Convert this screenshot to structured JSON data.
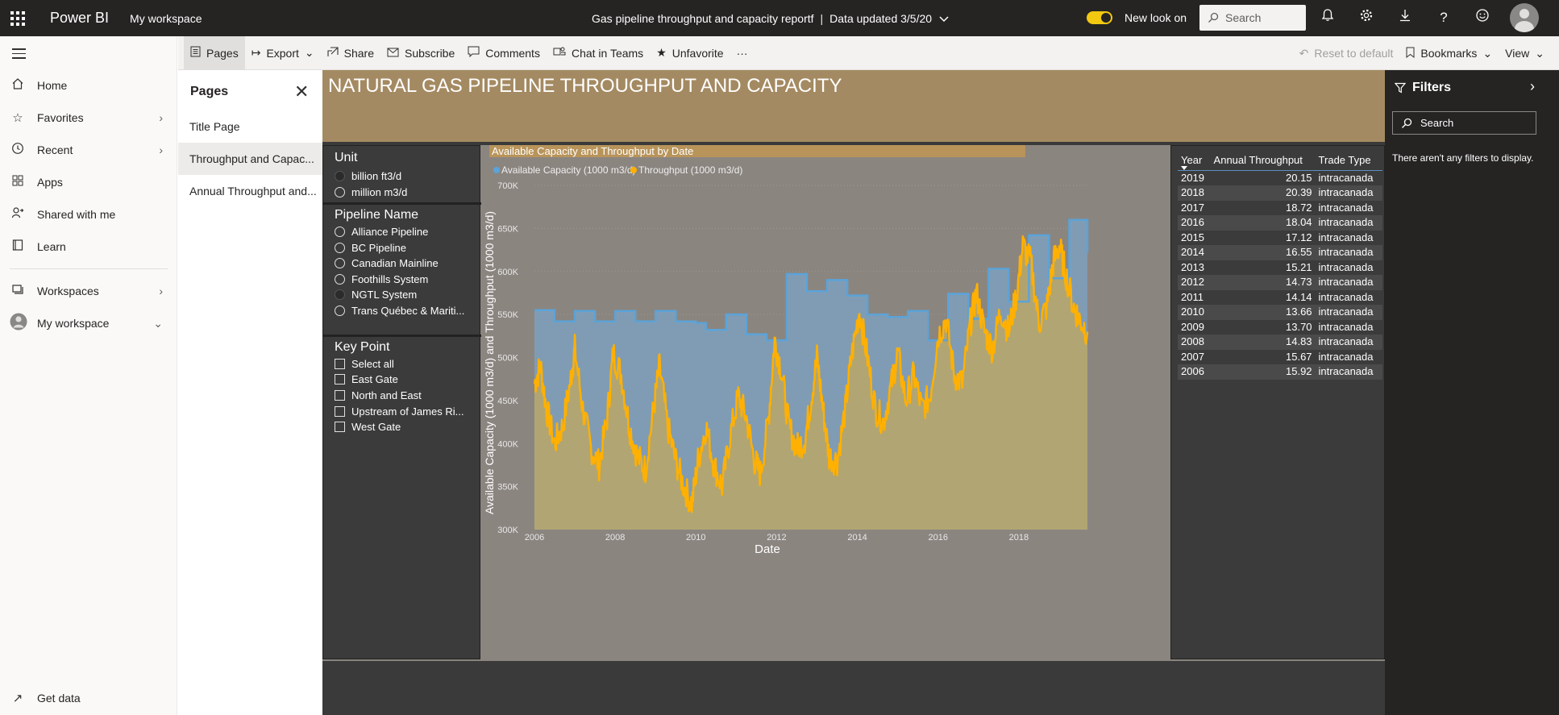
{
  "topbar": {
    "brand": "Power BI",
    "workspace": "My workspace",
    "report_title": "Gas pipeline throughput and capacity reportf",
    "separator": "|",
    "data_updated": "Data updated 3/5/20",
    "new_look": "New look on",
    "search_placeholder": "Search"
  },
  "leftnav": {
    "items": [
      {
        "label": "Home",
        "icon": "home-icon"
      },
      {
        "label": "Favorites",
        "icon": "star-icon"
      },
      {
        "label": "Recent",
        "icon": "clock-icon"
      },
      {
        "label": "Apps",
        "icon": "apps-icon"
      },
      {
        "label": "Shared with me",
        "icon": "shared-icon"
      },
      {
        "label": "Learn",
        "icon": "book-icon"
      },
      {
        "label": "Workspaces",
        "icon": "workspaces-icon"
      },
      {
        "label": "My workspace",
        "icon": "person-icon"
      }
    ],
    "get_data": "Get data"
  },
  "actionbar": {
    "pages": "Pages",
    "export": "Export",
    "share": "Share",
    "subscribe": "Subscribe",
    "comments": "Comments",
    "chat_in_teams": "Chat in Teams",
    "unfavorite": "Unfavorite",
    "more": "···",
    "reset": "Reset to default",
    "bookmarks": "Bookmarks",
    "view": "View"
  },
  "pages_pane": {
    "title": "Pages",
    "pages": [
      "Title Page",
      "Throughput and Capac...",
      "Annual Throughput and..."
    ]
  },
  "report": {
    "title": "NATURAL GAS PIPELINE THROUGHPUT AND CAPACITY",
    "unit_slicer": {
      "title": "Unit",
      "options": [
        "billion ft3/d",
        "million m3/d"
      ],
      "selected": "billion ft3/d"
    },
    "pipeline_slicer": {
      "title": "Pipeline Name",
      "options": [
        "Alliance Pipeline",
        "BC Pipeline",
        "Canadian Mainline",
        "Foothills System",
        "NGTL System",
        "Trans Québec & Mariti..."
      ],
      "selected": "NGTL System"
    },
    "keypoint_slicer": {
      "title": "Key Point",
      "options": [
        "Select all",
        "East Gate",
        "North and East",
        "Upstream of James Ri...",
        "West Gate"
      ]
    },
    "table": {
      "headers": [
        "Year",
        "Annual Throughput",
        "Trade Type"
      ],
      "rows": [
        [
          "2019",
          "20.15",
          "intracanada"
        ],
        [
          "2018",
          "20.39",
          "intracanada"
        ],
        [
          "2017",
          "18.72",
          "intracanada"
        ],
        [
          "2016",
          "18.04",
          "intracanada"
        ],
        [
          "2015",
          "17.12",
          "intracanada"
        ],
        [
          "2014",
          "16.55",
          "intracanada"
        ],
        [
          "2013",
          "15.21",
          "intracanada"
        ],
        [
          "2012",
          "14.73",
          "intracanada"
        ],
        [
          "2011",
          "14.14",
          "intracanada"
        ],
        [
          "2010",
          "13.66",
          "intracanada"
        ],
        [
          "2009",
          "13.70",
          "intracanada"
        ],
        [
          "2008",
          "14.83",
          "intracanada"
        ],
        [
          "2007",
          "15.67",
          "intracanada"
        ],
        [
          "2006",
          "15.92",
          "intracanada"
        ]
      ]
    }
  },
  "filters": {
    "title": "Filters",
    "search_placeholder": "Search",
    "empty_message": "There aren't any filters to display."
  },
  "chart_data": {
    "type": "area",
    "title": "Available Capacity and Throughput by Date",
    "xlabel": "Date",
    "ylabel": "Available Capacity (1000 m3/d) and Throughput (1000 m3/d)",
    "xlim": [
      2006,
      2019.7
    ],
    "ylim": [
      300000,
      700000
    ],
    "x_ticks": [
      "2006",
      "2008",
      "2010",
      "2012",
      "2014",
      "2016",
      "2018"
    ],
    "y_ticks": [
      "300K",
      "350K",
      "400K",
      "450K",
      "500K",
      "550K",
      "600K",
      "650K",
      "700K"
    ],
    "legend_position": "top-left",
    "grid": true,
    "colors": {
      "capacity": "#5ba3d9",
      "throughput": "#ffb000"
    },
    "series": [
      {
        "name": "Available Capacity (1000 m3/d)",
        "x": [
          2006.0,
          2006.25,
          2006.5,
          2006.75,
          2007.0,
          2007.25,
          2007.5,
          2007.75,
          2008.0,
          2008.25,
          2008.5,
          2008.75,
          2009.0,
          2009.25,
          2009.5,
          2009.75,
          2010.0,
          2010.25,
          2010.5,
          2010.75,
          2011.0,
          2011.25,
          2011.5,
          2011.75,
          2012.0,
          2012.25,
          2012.5,
          2012.75,
          2013.0,
          2013.25,
          2013.5,
          2013.75,
          2014.0,
          2014.25,
          2014.5,
          2014.75,
          2015.0,
          2015.25,
          2015.5,
          2015.75,
          2016.0,
          2016.25,
          2016.5,
          2016.75,
          2017.0,
          2017.25,
          2017.5,
          2017.75,
          2018.0,
          2018.25,
          2018.5,
          2018.75,
          2019.0,
          2019.25,
          2019.5,
          2019.7
        ],
        "y": [
          555000,
          555000,
          542000,
          542000,
          554000,
          554000,
          542000,
          542000,
          554000,
          554000,
          542000,
          542000,
          554000,
          554000,
          542000,
          542000,
          540000,
          532000,
          532000,
          550000,
          550000,
          527000,
          527000,
          520000,
          520000,
          597000,
          597000,
          577000,
          577000,
          590000,
          590000,
          572000,
          572000,
          550000,
          550000,
          547000,
          547000,
          554000,
          554000,
          520000,
          520000,
          574000,
          574000,
          545000,
          545000,
          603000,
          603000,
          565000,
          565000,
          642000,
          642000,
          592000,
          592000,
          660000,
          660000,
          622000
        ]
      },
      {
        "name": "Throughput (1000 m3/d)",
        "x": [
          2006.0,
          2006.15,
          2006.3,
          2006.5,
          2006.7,
          2006.9,
          2007.0,
          2007.2,
          2007.4,
          2007.6,
          2007.8,
          2007.95,
          2008.15,
          2008.35,
          2008.55,
          2008.75,
          2008.95,
          2009.1,
          2009.3,
          2009.5,
          2009.7,
          2009.9,
          2010.05,
          2010.25,
          2010.45,
          2010.65,
          2010.85,
          2011.05,
          2011.25,
          2011.45,
          2011.6,
          2011.8,
          2011.95,
          2012.1,
          2012.3,
          2012.5,
          2012.7,
          2012.85,
          2013.0,
          2013.15,
          2013.3,
          2013.5,
          2013.7,
          2013.85,
          2014.05,
          2014.25,
          2014.45,
          2014.65,
          2014.85,
          2015.0,
          2015.2,
          2015.4,
          2015.6,
          2015.8,
          2016.0,
          2016.2,
          2016.4,
          2016.6,
          2016.8,
          2016.95,
          2017.15,
          2017.35,
          2017.55,
          2017.75,
          2017.95,
          2018.1,
          2018.3,
          2018.5,
          2018.7,
          2018.85,
          2019.0,
          2019.15,
          2019.35,
          2019.5,
          2019.7
        ],
        "y": [
          470000,
          490000,
          440000,
          400000,
          420000,
          475000,
          510000,
          440000,
          395000,
          375000,
          430000,
          505000,
          480000,
          420000,
          385000,
          370000,
          440000,
          490000,
          420000,
          380000,
          350000,
          330000,
          380000,
          420000,
          375000,
          350000,
          410000,
          455000,
          430000,
          380000,
          365000,
          430000,
          520000,
          490000,
          420000,
          395000,
          405000,
          450000,
          500000,
          440000,
          385000,
          380000,
          440000,
          500000,
          555000,
          500000,
          440000,
          425000,
          470000,
          505000,
          450000,
          480000,
          440000,
          455000,
          525000,
          545000,
          480000,
          470000,
          540000,
          575000,
          530000,
          510000,
          555000,
          530000,
          575000,
          630000,
          610000,
          540000,
          560000,
          610000,
          630000,
          600000,
          560000,
          545000,
          530000
        ]
      }
    ]
  }
}
